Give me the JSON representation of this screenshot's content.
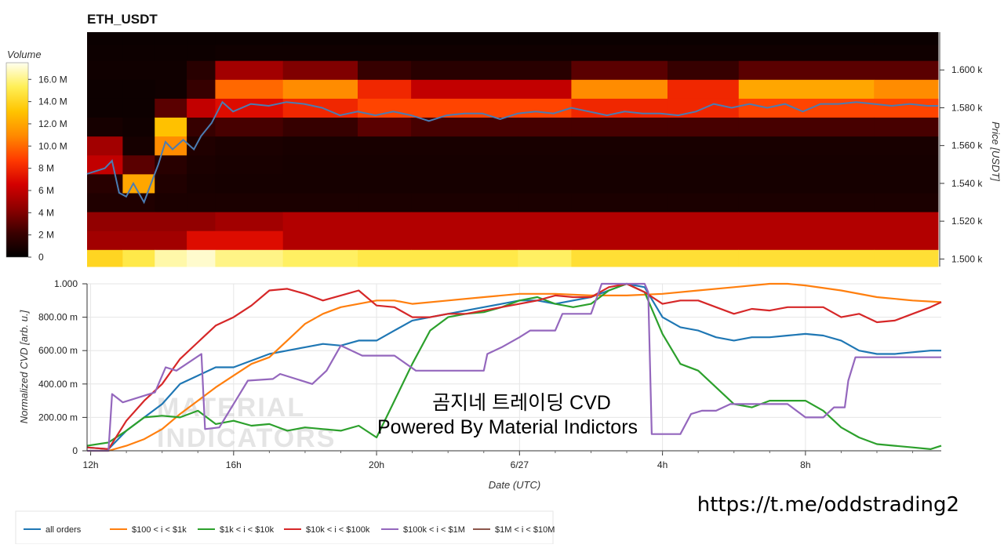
{
  "chart_data": [
    {
      "type": "heatmap",
      "title": "ETH_USDT",
      "colorbar": {
        "title": "Volume",
        "ticks": [
          "0",
          "2 M",
          "4 M",
          "6 M",
          "8 M",
          "10.0 M",
          "12.0 M",
          "14.0 M",
          "16.0 M"
        ],
        "tick_values": [
          0,
          2,
          4,
          6,
          8,
          10,
          12,
          14,
          16
        ],
        "range": [
          0,
          17.5
        ],
        "colors": [
          "#000000",
          "#3b0000",
          "#8e0000",
          "#d40000",
          "#ff3b00",
          "#ff8a00",
          "#ffc400",
          "#ffef55",
          "#fffff0"
        ]
      },
      "y_axis": {
        "label": "Price [USDT]",
        "ticks": [
          "1.500 k",
          "1.520 k",
          "1.540 k",
          "1.560 k",
          "1.580 k",
          "1.600 k"
        ],
        "tick_values": [
          1500,
          1520,
          1540,
          1560,
          1580,
          1600
        ],
        "range": [
          1496,
          1620
        ]
      },
      "x_range_hours": [
        11.9,
        35.8
      ],
      "price_levels": [
        1500,
        1510,
        1520,
        1530,
        1540,
        1550,
        1560,
        1570,
        1580,
        1590,
        1600,
        1610,
        1617
      ],
      "time_segments": [
        {
          "t0": 11.9,
          "t1": 12.9,
          "volumes": [
            14,
            5,
            4.5,
            1.2,
            1.5,
            6,
            5,
            0.8,
            0.5,
            0.5,
            0.6,
            0.5,
            0.4
          ]
        },
        {
          "t0": 12.9,
          "t1": 13.8,
          "volumes": [
            15,
            5,
            4.5,
            1.2,
            12,
            3,
            0.8,
            0.6,
            0.5,
            0.5,
            0.6,
            0.5,
            0.4
          ]
        },
        {
          "t0": 13.8,
          "t1": 14.7,
          "volumes": [
            16.5,
            5,
            4.5,
            1,
            1.2,
            1.5,
            11,
            13,
            3,
            0.6,
            0.6,
            0.5,
            0.4
          ]
        },
        {
          "t0": 14.7,
          "t1": 15.5,
          "volumes": [
            17,
            7,
            4.5,
            1,
            0.9,
            1,
            1.2,
            2,
            6,
            2,
            1.5,
            0.5,
            0.4
          ]
        },
        {
          "t0": 15.5,
          "t1": 17.4,
          "volumes": [
            16,
            7,
            5,
            1,
            0.8,
            0.9,
            1,
            2.5,
            7,
            10,
            5,
            0.6,
            0.4
          ]
        },
        {
          "t0": 17.4,
          "t1": 19.5,
          "volumes": [
            15.5,
            5.5,
            5.5,
            1,
            0.8,
            0.8,
            0.9,
            2,
            8,
            11,
            4,
            0.6,
            0.4
          ]
        },
        {
          "t0": 19.5,
          "t1": 21.0,
          "volumes": [
            15,
            5.5,
            5.5,
            1,
            0.8,
            0.8,
            0.9,
            3,
            9,
            8,
            2,
            0.6,
            0.4
          ]
        },
        {
          "t0": 21.0,
          "t1": 24.0,
          "volumes": [
            15,
            5.5,
            5.5,
            1,
            0.8,
            0.8,
            0.9,
            2.5,
            9,
            6,
            1.5,
            0.6,
            0.4
          ]
        },
        {
          "t0": 24.0,
          "t1": 25.5,
          "volumes": [
            15.5,
            5.5,
            5.5,
            1,
            0.8,
            0.8,
            0.9,
            2.5,
            9,
            6,
            1.5,
            0.6,
            0.4
          ]
        },
        {
          "t0": 25.5,
          "t1": 28.2,
          "volumes": [
            14.5,
            5.5,
            5.5,
            1,
            0.8,
            0.8,
            0.9,
            2.5,
            8,
            11,
            3,
            0.6,
            0.4
          ]
        },
        {
          "t0": 28.2,
          "t1": 30.2,
          "volumes": [
            14.5,
            5.5,
            5.5,
            1,
            0.8,
            0.8,
            0.9,
            2.5,
            8,
            8,
            2,
            0.6,
            0.4
          ]
        },
        {
          "t0": 30.2,
          "t1": 34.0,
          "volumes": [
            14.5,
            5.5,
            5.5,
            1,
            0.8,
            0.8,
            0.9,
            2.5,
            9,
            12,
            3,
            0.6,
            0.4
          ]
        },
        {
          "t0": 34.0,
          "t1": 35.8,
          "volumes": [
            14.5,
            5.5,
            5.5,
            1,
            0.8,
            0.8,
            0.9,
            2.5,
            9,
            11,
            3,
            0.6,
            0.4
          ]
        }
      ],
      "price_line": {
        "name": "price",
        "color": "#4b7cb3",
        "x": [
          11.9,
          12.4,
          12.6,
          12.8,
          13.0,
          13.2,
          13.5,
          13.7,
          13.9,
          14.1,
          14.3,
          14.6,
          14.9,
          15.1,
          15.4,
          15.7,
          16.0,
          16.5,
          17.0,
          17.5,
          18.0,
          18.5,
          19.0,
          19.5,
          20.0,
          20.5,
          21.0,
          21.5,
          22.0,
          22.5,
          23.0,
          23.5,
          24.0,
          24.5,
          25.0,
          25.5,
          26.0,
          26.5,
          27.0,
          27.5,
          28.0,
          28.5,
          29.0,
          29.5,
          30.0,
          30.5,
          31.0,
          31.5,
          32.0,
          32.5,
          33.0,
          33.5,
          34.0,
          34.5,
          35.0,
          35.5,
          35.8
        ],
        "y": [
          1545,
          1548,
          1552,
          1535,
          1533,
          1540,
          1530,
          1540,
          1550,
          1562,
          1558,
          1563,
          1558,
          1565,
          1572,
          1583,
          1578,
          1582,
          1581,
          1583,
          1582,
          1580,
          1576,
          1578,
          1576,
          1578,
          1576,
          1573,
          1576,
          1577,
          1577,
          1574,
          1577,
          1578,
          1577,
          1580,
          1578,
          1576,
          1578,
          1577,
          1577,
          1576,
          1578,
          1582,
          1580,
          1582,
          1580,
          1582,
          1578,
          1582,
          1582,
          1583,
          1582,
          1581,
          1582,
          1581,
          1581
        ]
      }
    },
    {
      "type": "line",
      "xlabel": "Date (UTC)",
      "ylabel": "Normalized CVD [arb. u.]",
      "x_ticks": [
        "12h",
        "16h",
        "20h",
        "6/27",
        "4h",
        "8h"
      ],
      "x_tick_values": [
        12,
        16,
        20,
        24,
        28,
        32
      ],
      "x_range": [
        11.9,
        35.8
      ],
      "y_ticks": [
        "0",
        "200.00 m",
        "400.00 m",
        "600.00 m",
        "800.00 m",
        "1.000"
      ],
      "y_tick_values": [
        0,
        0.2,
        0.4,
        0.6,
        0.8,
        1.0
      ],
      "ylim": [
        0,
        1.0
      ],
      "grid": true,
      "legend_position": "bottom-left",
      "series": [
        {
          "name": "all orders",
          "color": "#1f77b4",
          "x": [
            11.9,
            12.5,
            13.0,
            13.5,
            14.0,
            14.5,
            15.0,
            15.5,
            16.0,
            16.5,
            17.0,
            17.5,
            18.0,
            18.5,
            19.0,
            19.5,
            20.0,
            20.5,
            21.0,
            21.5,
            22.0,
            22.5,
            23.0,
            23.5,
            24.0,
            24.5,
            25.0,
            25.5,
            26.0,
            26.5,
            27.0,
            27.5,
            28.0,
            28.5,
            29.0,
            29.5,
            30.0,
            30.5,
            31.0,
            31.5,
            32.0,
            32.5,
            33.0,
            33.5,
            34.0,
            34.5,
            35.0,
            35.5,
            35.8
          ],
          "y": [
            0.02,
            0.01,
            0.12,
            0.2,
            0.28,
            0.4,
            0.45,
            0.5,
            0.5,
            0.54,
            0.58,
            0.6,
            0.62,
            0.64,
            0.63,
            0.66,
            0.66,
            0.72,
            0.78,
            0.8,
            0.82,
            0.84,
            0.86,
            0.88,
            0.9,
            0.9,
            0.88,
            0.9,
            0.92,
            0.96,
            1.0,
            0.98,
            0.8,
            0.74,
            0.72,
            0.68,
            0.66,
            0.68,
            0.68,
            0.69,
            0.7,
            0.69,
            0.66,
            0.6,
            0.58,
            0.58,
            0.59,
            0.6,
            0.6
          ]
        },
        {
          "name": "$100 < i < $1k",
          "color": "#ff7f0e",
          "x": [
            11.9,
            12.5,
            13.0,
            13.5,
            14.0,
            14.5,
            15.0,
            15.5,
            16.0,
            16.5,
            17.0,
            17.5,
            18.0,
            18.5,
            19.0,
            19.5,
            20.0,
            20.5,
            21.0,
            22.0,
            23.0,
            24.0,
            25.0,
            26.0,
            27.0,
            28.0,
            29.0,
            30.0,
            31.0,
            31.5,
            32.0,
            33.0,
            34.0,
            35.0,
            35.8
          ],
          "y": [
            0.0,
            0.0,
            0.03,
            0.07,
            0.13,
            0.22,
            0.3,
            0.38,
            0.45,
            0.52,
            0.56,
            0.66,
            0.76,
            0.82,
            0.86,
            0.88,
            0.9,
            0.9,
            0.88,
            0.9,
            0.92,
            0.94,
            0.94,
            0.93,
            0.93,
            0.94,
            0.96,
            0.98,
            1.0,
            1.0,
            0.99,
            0.96,
            0.92,
            0.9,
            0.89
          ]
        },
        {
          "name": "$1k < i < $10k",
          "color": "#2ca02c",
          "x": [
            11.9,
            12.5,
            13.0,
            13.5,
            14.0,
            14.5,
            15.0,
            15.5,
            16.0,
            16.5,
            17.0,
            17.5,
            18.0,
            18.5,
            19.0,
            19.5,
            20.0,
            20.5,
            21.0,
            21.5,
            22.0,
            22.5,
            23.0,
            23.5,
            24.0,
            24.5,
            25.0,
            25.5,
            26.0,
            26.5,
            27.0,
            27.5,
            28.0,
            28.5,
            29.0,
            29.5,
            30.0,
            30.5,
            31.0,
            31.5,
            32.0,
            32.5,
            33.0,
            33.5,
            34.0,
            34.5,
            35.0,
            35.5,
            35.8
          ],
          "y": [
            0.03,
            0.05,
            0.12,
            0.2,
            0.21,
            0.2,
            0.24,
            0.16,
            0.18,
            0.15,
            0.16,
            0.12,
            0.14,
            0.13,
            0.12,
            0.15,
            0.08,
            0.3,
            0.52,
            0.72,
            0.8,
            0.82,
            0.83,
            0.86,
            0.9,
            0.92,
            0.88,
            0.86,
            0.88,
            0.96,
            1.0,
            0.95,
            0.7,
            0.52,
            0.48,
            0.38,
            0.28,
            0.26,
            0.3,
            0.3,
            0.3,
            0.24,
            0.14,
            0.08,
            0.04,
            0.03,
            0.02,
            0.01,
            0.03
          ]
        },
        {
          "name": "$10k < i < $100k",
          "color": "#d62728",
          "x": [
            11.9,
            12.5,
            13.0,
            13.5,
            14.0,
            14.5,
            15.0,
            15.5,
            16.0,
            16.5,
            17.0,
            17.5,
            18.0,
            18.5,
            19.0,
            19.5,
            20.0,
            20.5,
            21.0,
            21.5,
            22.0,
            22.5,
            23.0,
            23.5,
            24.0,
            24.5,
            25.0,
            25.5,
            26.0,
            26.5,
            27.0,
            27.5,
            28.0,
            28.5,
            29.0,
            29.5,
            30.0,
            30.5,
            31.0,
            31.5,
            32.0,
            32.5,
            33.0,
            33.5,
            34.0,
            34.5,
            35.0,
            35.5,
            35.8
          ],
          "y": [
            0.02,
            0.01,
            0.18,
            0.3,
            0.4,
            0.55,
            0.65,
            0.75,
            0.8,
            0.87,
            0.96,
            0.97,
            0.94,
            0.9,
            0.93,
            0.96,
            0.87,
            0.86,
            0.8,
            0.8,
            0.82,
            0.82,
            0.84,
            0.86,
            0.88,
            0.9,
            0.93,
            0.92,
            0.92,
            0.98,
            1.0,
            0.95,
            0.88,
            0.9,
            0.9,
            0.86,
            0.82,
            0.85,
            0.84,
            0.86,
            0.86,
            0.86,
            0.8,
            0.82,
            0.77,
            0.78,
            0.82,
            0.86,
            0.89
          ]
        },
        {
          "name": "$100k < i < $1M",
          "color": "#9467bd",
          "x": [
            11.9,
            12.5,
            12.6,
            12.9,
            13.8,
            14.1,
            14.4,
            15.1,
            15.2,
            15.6,
            16.4,
            17.1,
            17.3,
            18.2,
            18.6,
            19.0,
            19.6,
            20.5,
            21.1,
            22.0,
            23.0,
            23.1,
            23.5,
            24.0,
            24.3,
            25.0,
            25.2,
            26.0,
            26.3,
            26.9,
            27.5,
            27.6,
            27.7,
            28.0,
            28.5,
            28.8,
            29.1,
            29.5,
            29.9,
            30.5,
            31.0,
            31.5,
            32.0,
            32.5,
            32.8,
            33.1,
            33.2,
            33.4,
            34.0,
            35.0,
            35.8
          ],
          "y": [
            0.0,
            0.0,
            0.34,
            0.29,
            0.35,
            0.5,
            0.48,
            0.58,
            0.13,
            0.14,
            0.42,
            0.43,
            0.46,
            0.4,
            0.48,
            0.63,
            0.57,
            0.57,
            0.48,
            0.48,
            0.48,
            0.58,
            0.62,
            0.68,
            0.72,
            0.72,
            0.82,
            0.82,
            1.0,
            1.0,
            1.0,
            0.95,
            0.1,
            0.1,
            0.1,
            0.22,
            0.24,
            0.24,
            0.28,
            0.28,
            0.28,
            0.28,
            0.2,
            0.2,
            0.26,
            0.26,
            0.42,
            0.56,
            0.56,
            0.56,
            0.56
          ]
        },
        {
          "name": "$1M < i < $10M",
          "color": "#8c564b",
          "x": [],
          "y": []
        }
      ]
    }
  ],
  "overlay": {
    "line1": "곰지네 트레이딩 CVD",
    "line2": "Powered By Material Indictors"
  },
  "watermark": {
    "line1": "MATERIAL",
    "line2": "INDICATORS"
  },
  "footer_url": "https://t.me/oddstrading2"
}
